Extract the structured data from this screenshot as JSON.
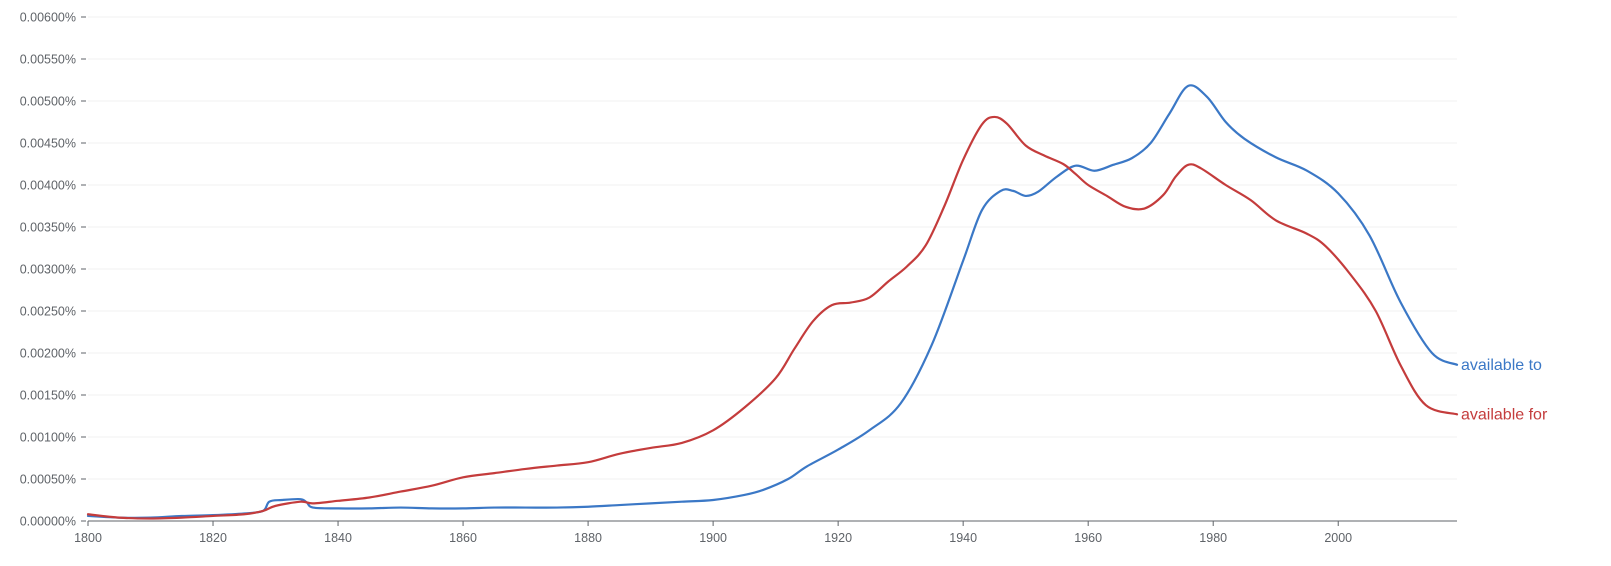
{
  "chart_data": {
    "type": "line",
    "title": "",
    "xlabel": "",
    "ylabel": "",
    "xlim": [
      1800,
      2019
    ],
    "ylim": [
      0,
      0.006
    ],
    "grid": true,
    "legend": "inline-right-end",
    "y_ticks": [
      {
        "value": 0.0,
        "label": "0.00000%"
      },
      {
        "value": 0.0005,
        "label": "0.00050%"
      },
      {
        "value": 0.001,
        "label": "0.00100%"
      },
      {
        "value": 0.0015,
        "label": "0.00150%"
      },
      {
        "value": 0.002,
        "label": "0.00200%"
      },
      {
        "value": 0.0025,
        "label": "0.00250%"
      },
      {
        "value": 0.003,
        "label": "0.00300%"
      },
      {
        "value": 0.0035,
        "label": "0.00350%"
      },
      {
        "value": 0.004,
        "label": "0.00400%"
      },
      {
        "value": 0.0045,
        "label": "0.00450%"
      },
      {
        "value": 0.005,
        "label": "0.00500%"
      },
      {
        "value": 0.0055,
        "label": "0.00550%"
      },
      {
        "value": 0.006,
        "label": "0.00600%"
      }
    ],
    "x_ticks": [
      {
        "value": 1800,
        "label": "1800"
      },
      {
        "value": 1820,
        "label": "1820"
      },
      {
        "value": 1840,
        "label": "1840"
      },
      {
        "value": 1860,
        "label": "1860"
      },
      {
        "value": 1880,
        "label": "1880"
      },
      {
        "value": 1900,
        "label": "1900"
      },
      {
        "value": 1920,
        "label": "1920"
      },
      {
        "value": 1940,
        "label": "1940"
      },
      {
        "value": 1960,
        "label": "1960"
      },
      {
        "value": 1980,
        "label": "1980"
      },
      {
        "value": 2000,
        "label": "2000"
      }
    ],
    "series": [
      {
        "name": "available to",
        "color": "#3b78c6",
        "points": [
          [
            1800,
            6e-05
          ],
          [
            1805,
            4e-05
          ],
          [
            1810,
            4e-05
          ],
          [
            1815,
            6e-05
          ],
          [
            1820,
            7e-05
          ],
          [
            1825,
            9e-05
          ],
          [
            1828,
            0.00012
          ],
          [
            1829,
            0.00023
          ],
          [
            1831,
            0.00025
          ],
          [
            1834,
            0.00026
          ],
          [
            1835,
            0.00022
          ],
          [
            1836,
            0.00016
          ],
          [
            1840,
            0.00015
          ],
          [
            1845,
            0.00015
          ],
          [
            1850,
            0.00016
          ],
          [
            1855,
            0.00015
          ],
          [
            1860,
            0.00015
          ],
          [
            1865,
            0.00016
          ],
          [
            1870,
            0.00016
          ],
          [
            1875,
            0.00016
          ],
          [
            1880,
            0.00017
          ],
          [
            1885,
            0.00019
          ],
          [
            1890,
            0.00021
          ],
          [
            1895,
            0.00023
          ],
          [
            1900,
            0.00025
          ],
          [
            1905,
            0.00031
          ],
          [
            1908,
            0.00037
          ],
          [
            1912,
            0.0005
          ],
          [
            1915,
            0.00065
          ],
          [
            1920,
            0.00085
          ],
          [
            1925,
            0.00108
          ],
          [
            1930,
            0.0014
          ],
          [
            1935,
            0.0021
          ],
          [
            1940,
            0.0031
          ],
          [
            1943,
            0.0037
          ],
          [
            1946,
            0.00393
          ],
          [
            1948,
            0.00393
          ],
          [
            1950,
            0.00387
          ],
          [
            1952,
            0.00392
          ],
          [
            1955,
            0.0041
          ],
          [
            1958,
            0.00423
          ],
          [
            1961,
            0.00417
          ],
          [
            1964,
            0.00424
          ],
          [
            1967,
            0.00432
          ],
          [
            1970,
            0.0045
          ],
          [
            1973,
            0.00485
          ],
          [
            1976,
            0.00518
          ],
          [
            1979,
            0.00505
          ],
          [
            1982,
            0.00475
          ],
          [
            1985,
            0.00455
          ],
          [
            1990,
            0.00433
          ],
          [
            1995,
            0.00417
          ],
          [
            2000,
            0.0039
          ],
          [
            2005,
            0.0034
          ],
          [
            2010,
            0.0026
          ],
          [
            2015,
            0.002
          ],
          [
            2019,
            0.00186
          ]
        ]
      },
      {
        "name": "available for",
        "color": "#c43c3c",
        "points": [
          [
            1800,
            8e-05
          ],
          [
            1805,
            4e-05
          ],
          [
            1810,
            3e-05
          ],
          [
            1815,
            4e-05
          ],
          [
            1820,
            6e-05
          ],
          [
            1825,
            8e-05
          ],
          [
            1828,
            0.00012
          ],
          [
            1830,
            0.00018
          ],
          [
            1834,
            0.00023
          ],
          [
            1836,
            0.00021
          ],
          [
            1840,
            0.00024
          ],
          [
            1845,
            0.00028
          ],
          [
            1850,
            0.00035
          ],
          [
            1855,
            0.00042
          ],
          [
            1860,
            0.00052
          ],
          [
            1865,
            0.00057
          ],
          [
            1870,
            0.00062
          ],
          [
            1875,
            0.00066
          ],
          [
            1880,
            0.0007
          ],
          [
            1885,
            0.0008
          ],
          [
            1890,
            0.00087
          ],
          [
            1895,
            0.00093
          ],
          [
            1900,
            0.00108
          ],
          [
            1905,
            0.00135
          ],
          [
            1910,
            0.0017
          ],
          [
            1913,
            0.00205
          ],
          [
            1916,
            0.00238
          ],
          [
            1919,
            0.00257
          ],
          [
            1922,
            0.0026
          ],
          [
            1925,
            0.00266
          ],
          [
            1928,
            0.00285
          ],
          [
            1931,
            0.00303
          ],
          [
            1934,
            0.00328
          ],
          [
            1937,
            0.00375
          ],
          [
            1940,
            0.0043
          ],
          [
            1943,
            0.00472
          ],
          [
            1945,
            0.00481
          ],
          [
            1947,
            0.00473
          ],
          [
            1950,
            0.00447
          ],
          [
            1953,
            0.00435
          ],
          [
            1956,
            0.00425
          ],
          [
            1958,
            0.00413
          ],
          [
            1960,
            0.004
          ],
          [
            1963,
            0.00387
          ],
          [
            1966,
            0.00374
          ],
          [
            1969,
            0.00372
          ],
          [
            1972,
            0.00388
          ],
          [
            1974,
            0.0041
          ],
          [
            1976,
            0.00424
          ],
          [
            1978,
            0.0042
          ],
          [
            1982,
            0.004
          ],
          [
            1986,
            0.00382
          ],
          [
            1990,
            0.00358
          ],
          [
            1995,
            0.00342
          ],
          [
            1998,
            0.00327
          ],
          [
            2002,
            0.00293
          ],
          [
            2006,
            0.0025
          ],
          [
            2010,
            0.00185
          ],
          [
            2014,
            0.00138
          ],
          [
            2019,
            0.00127
          ]
        ]
      }
    ]
  }
}
